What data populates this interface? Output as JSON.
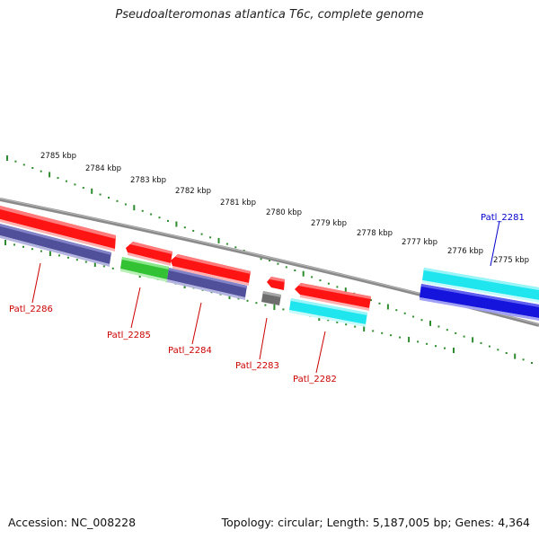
{
  "title": "Pseudoalteromonas atlantica T6c, complete genome",
  "accession": "Accession: NC_008228",
  "topology": "Topology: circular; Length: 5,187,005 bp; Genes: 4,364",
  "colors": {
    "backbone": "#8a8a8a",
    "tick": "#2e8b2e",
    "red": "#ff1414",
    "navy": "#4f4f9a",
    "green": "#33c233",
    "gray": "#707070",
    "cyan": "#1fe6ee",
    "blue": "#1414dd",
    "label_red": "#cc0000",
    "label_blue": "#0000cc"
  },
  "scale": [
    {
      "label": "2785 kbp"
    },
    {
      "label": "2784 kbp"
    },
    {
      "label": "2783 kbp"
    },
    {
      "label": "2782 kbp"
    },
    {
      "label": "2781 kbp"
    },
    {
      "label": "2780 kbp"
    },
    {
      "label": "2779 kbp"
    },
    {
      "label": "2778 kbp"
    },
    {
      "label": "2777 kbp"
    },
    {
      "label": "2776 kbp"
    },
    {
      "label": "2775 kbp"
    }
  ],
  "genes": [
    {
      "label": "Patl_2286",
      "color": "label_red"
    },
    {
      "label": "Patl_2285",
      "color": "label_red"
    },
    {
      "label": "Patl_2284",
      "color": "label_red"
    },
    {
      "label": "Patl_2283",
      "color": "label_red"
    },
    {
      "label": "Patl_2282",
      "color": "label_red"
    },
    {
      "label": "Patl_2281",
      "color": "label_blue"
    }
  ]
}
